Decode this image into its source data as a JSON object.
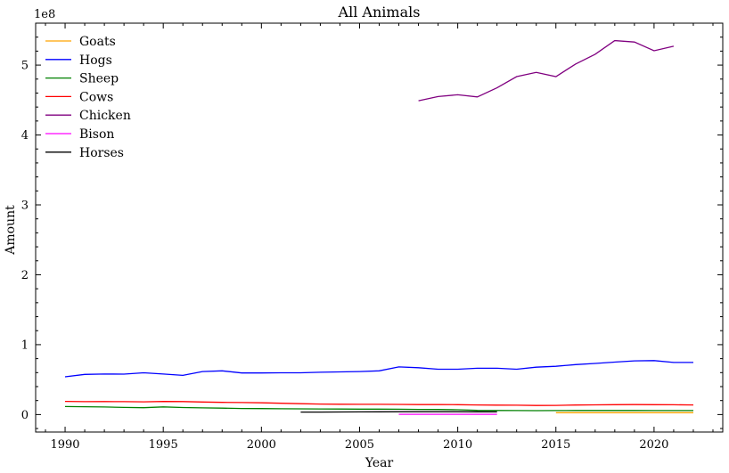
{
  "chart_data": {
    "type": "line",
    "title": "All Animals",
    "xlabel": "Year",
    "ylabel": "Amount",
    "y_multiplier_label": "1e8",
    "y_unit": 100000000,
    "xlim": [
      1988.5,
      2023.5
    ],
    "ylim": [
      -0.25,
      5.6
    ],
    "x_ticks": [
      1990,
      1995,
      2000,
      2005,
      2010,
      2015,
      2020
    ],
    "y_ticks": [
      0,
      1,
      2,
      3,
      4,
      5
    ],
    "grid": false,
    "legend_position": "top-left",
    "series": [
      {
        "name": "Goats",
        "color": "#ffa500",
        "x": [
          2015,
          2016,
          2017,
          2018,
          2019,
          2020,
          2021,
          2022
        ],
        "y": [
          2600000,
          2600000,
          2600000,
          2600000,
          2600000,
          2600000,
          2600000,
          2600000
        ]
      },
      {
        "name": "Hogs",
        "color": "#0000ff",
        "x": [
          1990,
          1991,
          1992,
          1993,
          1994,
          1995,
          1996,
          1997,
          1998,
          1999,
          2000,
          2001,
          2002,
          2003,
          2004,
          2005,
          2006,
          2007,
          2008,
          2009,
          2010,
          2011,
          2012,
          2013,
          2014,
          2015,
          2016,
          2017,
          2018,
          2019,
          2020,
          2021,
          2022
        ],
        "y": [
          54000000,
          57500000,
          58000000,
          57800000,
          59800000,
          58000000,
          56000000,
          61500000,
          62500000,
          59500000,
          59500000,
          59800000,
          59800000,
          60500000,
          61000000,
          61500000,
          62500000,
          68200000,
          67000000,
          64800000,
          64800000,
          66200000,
          66200000,
          64800000,
          67800000,
          69000000,
          71500000,
          73200000,
          75000000,
          76800000,
          77200000,
          74500000,
          74500000
        ]
      },
      {
        "name": "Sheep",
        "color": "#008000",
        "x": [
          1990,
          1991,
          1992,
          1993,
          1994,
          1995,
          1996,
          1997,
          1998,
          1999,
          2000,
          2001,
          2002,
          2003,
          2004,
          2005,
          2006,
          2007,
          2008,
          2009,
          2010,
          2011,
          2012,
          2013,
          2014,
          2015,
          2016,
          2017,
          2018,
          2019,
          2020,
          2021,
          2022
        ],
        "y": [
          11400000,
          11200000,
          10800000,
          10200000,
          9800000,
          11000000,
          10000000,
          9600000,
          9200000,
          8700000,
          8500000,
          8300000,
          8200000,
          8000000,
          7900000,
          7800000,
          7800000,
          7600000,
          7400000,
          7200000,
          6800000,
          6000000,
          5800000,
          5700000,
          5600000,
          5700000,
          5800000,
          5800000,
          5800000,
          5800000,
          5700000,
          5700000,
          5700000
        ]
      },
      {
        "name": "Cows",
        "color": "#ff0000",
        "x": [
          1990,
          1991,
          1992,
          1993,
          1994,
          1995,
          1996,
          1997,
          1998,
          1999,
          2000,
          2001,
          2002,
          2003,
          2004,
          2005,
          2006,
          2007,
          2008,
          2009,
          2010,
          2011,
          2012,
          2013,
          2014,
          2015,
          2016,
          2017,
          2018,
          2019,
          2020,
          2021,
          2022
        ],
        "y": [
          18800000,
          18500000,
          18600000,
          18400000,
          18200000,
          18700000,
          18600000,
          18000000,
          17500000,
          17200000,
          16800000,
          16200000,
          15500000,
          15000000,
          14800000,
          14600000,
          14600000,
          14500000,
          14300000,
          14200000,
          14100000,
          13700000,
          13500000,
          13400000,
          13000000,
          13100000,
          13600000,
          13900000,
          14100000,
          14200000,
          14100000,
          14000000,
          13800000
        ]
      },
      {
        "name": "Chicken",
        "color": "#800080",
        "x": [
          2008,
          2009,
          2010,
          2011,
          2012,
          2013,
          2014,
          2015,
          2016,
          2017,
          2018,
          2019,
          2020,
          2021
        ],
        "y": [
          449000000,
          455000000,
          457500000,
          454500000,
          467500000,
          483500000,
          489500000,
          483500000,
          501500000,
          515500000,
          535000000,
          533000000,
          520500000,
          527000000
        ]
      },
      {
        "name": "Bison",
        "color": "#ff00ff",
        "x": [
          2007,
          2008,
          2009,
          2010,
          2011,
          2012
        ],
        "y": [
          300000,
          300000,
          300000,
          300000,
          300000,
          300000
        ]
      },
      {
        "name": "Horses",
        "color": "#000000",
        "x": [
          2002,
          2003,
          2004,
          2005,
          2006,
          2007,
          2008,
          2009,
          2010,
          2011,
          2012
        ],
        "y": [
          3600000,
          3600000,
          3700000,
          3800000,
          3900000,
          4000000,
          4000000,
          4000000,
          4000000,
          3900000,
          3800000
        ]
      }
    ]
  }
}
